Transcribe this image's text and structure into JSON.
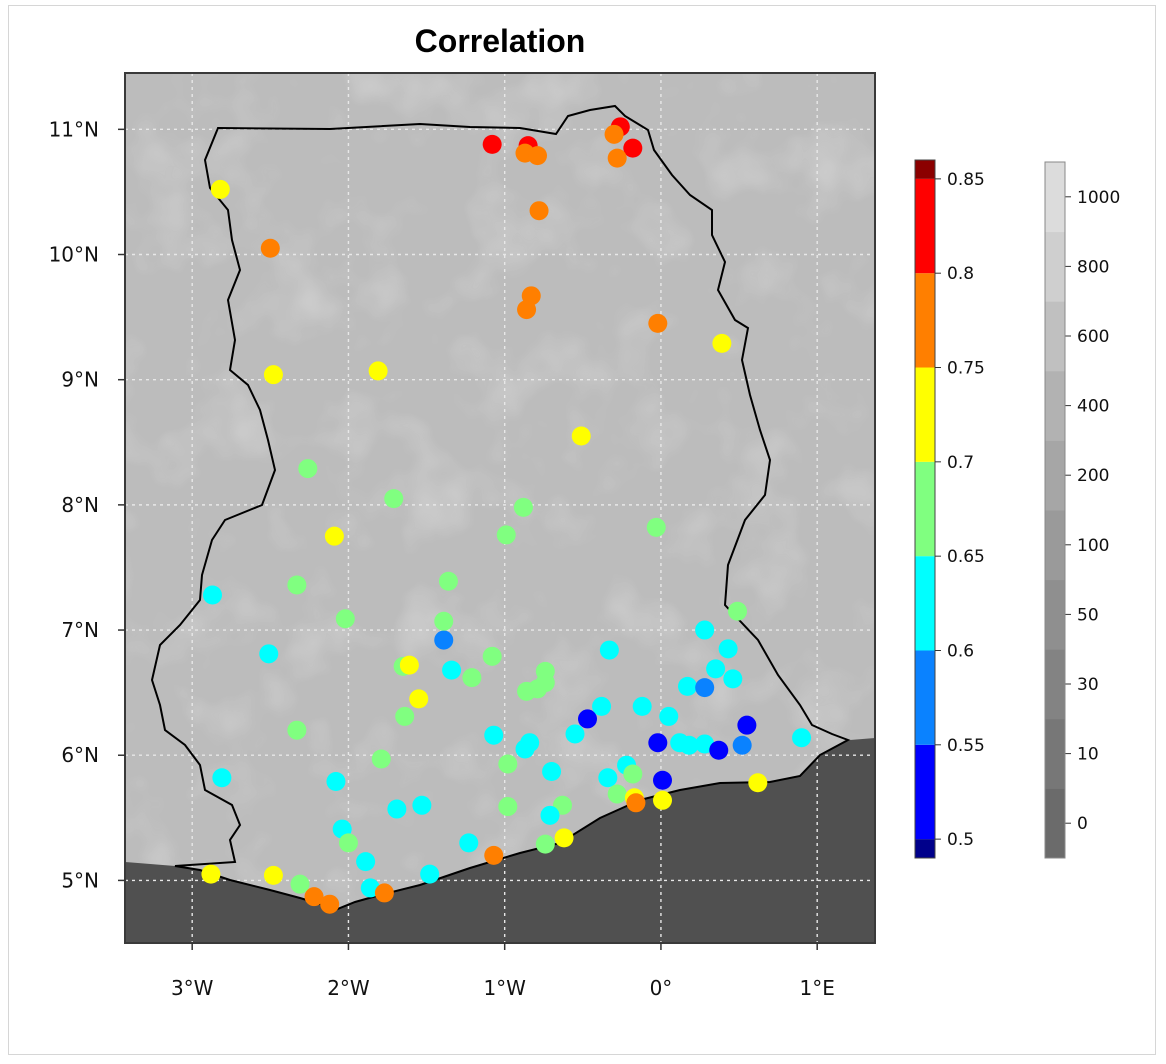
{
  "title": "Correlation",
  "x_ticks": [
    {
      "lon": -3,
      "label": "3°W"
    },
    {
      "lon": -2,
      "label": "2°W"
    },
    {
      "lon": -1,
      "label": "1°W"
    },
    {
      "lon": 0,
      "label": "0°"
    },
    {
      "lon": 1,
      "label": "1°E"
    }
  ],
  "y_ticks": [
    {
      "lat": 5,
      "label": "5°N"
    },
    {
      "lat": 6,
      "label": "6°N"
    },
    {
      "lat": 7,
      "label": "7°N"
    },
    {
      "lat": 8,
      "label": "8°N"
    },
    {
      "lat": 9,
      "label": "9°N"
    },
    {
      "lat": 10,
      "label": "10°N"
    },
    {
      "lat": 11,
      "label": "11°N"
    }
  ],
  "correlation_scale": {
    "levels": [
      {
        "from": 0.49,
        "to": 0.5,
        "color": "#00008B"
      },
      {
        "from": 0.5,
        "to": 0.55,
        "color": "#0000FF"
      },
      {
        "from": 0.55,
        "to": 0.6,
        "color": "#0A82FF"
      },
      {
        "from": 0.6,
        "to": 0.65,
        "color": "#00FFFF"
      },
      {
        "from": 0.65,
        "to": 0.7,
        "color": "#80FF80"
      },
      {
        "from": 0.7,
        "to": 0.75,
        "color": "#FFFF00"
      },
      {
        "from": 0.75,
        "to": 0.8,
        "color": "#FF7F00"
      },
      {
        "from": 0.8,
        "to": 0.85,
        "color": "#FF0000"
      },
      {
        "from": 0.85,
        "to": 0.86,
        "color": "#8B0000"
      }
    ],
    "tick_labels": [
      "0.5",
      "0.55",
      "0.6",
      "0.65",
      "0.7",
      "0.75",
      "0.8",
      "0.85"
    ]
  },
  "elevation_scale": {
    "levels": [
      {
        "label": "0",
        "color": "#6b6b6b"
      },
      {
        "label": "10",
        "color": "#777777"
      },
      {
        "label": "30",
        "color": "#838383"
      },
      {
        "label": "50",
        "color": "#8f8f8f"
      },
      {
        "label": "100",
        "color": "#9a9a9a"
      },
      {
        "label": "200",
        "color": "#a6a6a6"
      },
      {
        "label": "400",
        "color": "#b2b2b2"
      },
      {
        "label": "600",
        "color": "#c0c0c0"
      },
      {
        "label": "800",
        "color": "#cfcfcf"
      },
      {
        "label": "1000",
        "color": "#dcdcdc"
      }
    ]
  },
  "ocean_color": "#505050",
  "land_color": "#bcbcbc",
  "chart_data": {
    "type": "scatter",
    "title": "Correlation",
    "xlim": [
      -3.43,
      1.37
    ],
    "ylim": [
      4.5,
      11.45
    ],
    "x_ticks": [
      -3,
      -2,
      -1,
      0,
      1
    ],
    "y_ticks": [
      5,
      6,
      7,
      8,
      9,
      10,
      11
    ],
    "grid": true,
    "colorbar": "right",
    "stations": [
      {
        "lon": -1.08,
        "lat": 10.88,
        "r": 0.82
      },
      {
        "lon": -0.85,
        "lat": 10.87,
        "r": 0.82
      },
      {
        "lon": -0.26,
        "lat": 11.02,
        "r": 0.84
      },
      {
        "lon": -0.18,
        "lat": 10.85,
        "r": 0.82
      },
      {
        "lon": -0.87,
        "lat": 10.81,
        "r": 0.77
      },
      {
        "lon": -0.79,
        "lat": 10.79,
        "r": 0.77
      },
      {
        "lon": -0.3,
        "lat": 10.96,
        "r": 0.77
      },
      {
        "lon": -0.28,
        "lat": 10.77,
        "r": 0.77
      },
      {
        "lon": -0.78,
        "lat": 10.35,
        "r": 0.77
      },
      {
        "lon": -2.82,
        "lat": 10.52,
        "r": 0.72
      },
      {
        "lon": -2.5,
        "lat": 10.05,
        "r": 0.77
      },
      {
        "lon": -0.83,
        "lat": 9.67,
        "r": 0.77
      },
      {
        "lon": -0.86,
        "lat": 9.56,
        "r": 0.77
      },
      {
        "lon": -0.02,
        "lat": 9.45,
        "r": 0.77
      },
      {
        "lon": 0.39,
        "lat": 9.29,
        "r": 0.72
      },
      {
        "lon": -2.48,
        "lat": 9.04,
        "r": 0.72
      },
      {
        "lon": -1.81,
        "lat": 9.07,
        "r": 0.72
      },
      {
        "lon": -0.51,
        "lat": 8.55,
        "r": 0.72
      },
      {
        "lon": -2.26,
        "lat": 8.29,
        "r": 0.68
      },
      {
        "lon": -1.71,
        "lat": 8.05,
        "r": 0.68
      },
      {
        "lon": -0.88,
        "lat": 7.98,
        "r": 0.68
      },
      {
        "lon": -0.03,
        "lat": 7.82,
        "r": 0.68
      },
      {
        "lon": -2.09,
        "lat": 7.75,
        "r": 0.72
      },
      {
        "lon": -0.99,
        "lat": 7.76,
        "r": 0.68
      },
      {
        "lon": -2.33,
        "lat": 7.36,
        "r": 0.68
      },
      {
        "lon": -1.36,
        "lat": 7.39,
        "r": 0.68
      },
      {
        "lon": -2.87,
        "lat": 7.28,
        "r": 0.62
      },
      {
        "lon": 0.49,
        "lat": 7.15,
        "r": 0.68
      },
      {
        "lon": -2.02,
        "lat": 7.09,
        "r": 0.68
      },
      {
        "lon": -1.39,
        "lat": 7.07,
        "r": 0.68
      },
      {
        "lon": 0.28,
        "lat": 7.0,
        "r": 0.62
      },
      {
        "lon": -1.39,
        "lat": 6.92,
        "r": 0.57
      },
      {
        "lon": -0.33,
        "lat": 6.84,
        "r": 0.62
      },
      {
        "lon": 0.43,
        "lat": 6.85,
        "r": 0.62
      },
      {
        "lon": -2.51,
        "lat": 6.81,
        "r": 0.62
      },
      {
        "lon": -1.08,
        "lat": 6.79,
        "r": 0.68
      },
      {
        "lon": -1.65,
        "lat": 6.71,
        "r": 0.68
      },
      {
        "lon": -1.61,
        "lat": 6.72,
        "r": 0.72
      },
      {
        "lon": -1.34,
        "lat": 6.68,
        "r": 0.62
      },
      {
        "lon": -0.74,
        "lat": 6.67,
        "r": 0.68
      },
      {
        "lon": 0.35,
        "lat": 6.69,
        "r": 0.62
      },
      {
        "lon": -1.21,
        "lat": 6.62,
        "r": 0.68
      },
      {
        "lon": 0.46,
        "lat": 6.61,
        "r": 0.62
      },
      {
        "lon": -0.74,
        "lat": 6.58,
        "r": 0.68
      },
      {
        "lon": -0.79,
        "lat": 6.53,
        "r": 0.68
      },
      {
        "lon": 0.17,
        "lat": 6.55,
        "r": 0.62
      },
      {
        "lon": 0.28,
        "lat": 6.54,
        "r": 0.57
      },
      {
        "lon": -0.86,
        "lat": 6.51,
        "r": 0.68
      },
      {
        "lon": -1.55,
        "lat": 6.45,
        "r": 0.72
      },
      {
        "lon": -0.38,
        "lat": 6.39,
        "r": 0.62
      },
      {
        "lon": -0.12,
        "lat": 6.39,
        "r": 0.62
      },
      {
        "lon": -1.64,
        "lat": 6.31,
        "r": 0.68
      },
      {
        "lon": 0.05,
        "lat": 6.31,
        "r": 0.62
      },
      {
        "lon": -0.47,
        "lat": 6.29,
        "r": 0.52
      },
      {
        "lon": 0.55,
        "lat": 6.24,
        "r": 0.52
      },
      {
        "lon": -2.33,
        "lat": 6.2,
        "r": 0.68
      },
      {
        "lon": -0.55,
        "lat": 6.17,
        "r": 0.62
      },
      {
        "lon": -1.07,
        "lat": 6.16,
        "r": 0.62
      },
      {
        "lon": 0.9,
        "lat": 6.14,
        "r": 0.62
      },
      {
        "lon": -0.02,
        "lat": 6.1,
        "r": 0.52
      },
      {
        "lon": 0.12,
        "lat": 6.1,
        "r": 0.62
      },
      {
        "lon": 0.18,
        "lat": 6.08,
        "r": 0.62
      },
      {
        "lon": 0.28,
        "lat": 6.09,
        "r": 0.62
      },
      {
        "lon": -0.84,
        "lat": 6.1,
        "r": 0.62
      },
      {
        "lon": 0.52,
        "lat": 6.08,
        "r": 0.57
      },
      {
        "lon": -0.87,
        "lat": 6.05,
        "r": 0.62
      },
      {
        "lon": 0.37,
        "lat": 6.04,
        "r": 0.52
      },
      {
        "lon": -1.79,
        "lat": 5.97,
        "r": 0.68
      },
      {
        "lon": -0.98,
        "lat": 5.93,
        "r": 0.68
      },
      {
        "lon": -0.22,
        "lat": 5.92,
        "r": 0.62
      },
      {
        "lon": -0.7,
        "lat": 5.87,
        "r": 0.62
      },
      {
        "lon": -0.18,
        "lat": 5.85,
        "r": 0.68
      },
      {
        "lon": -2.81,
        "lat": 5.82,
        "r": 0.62
      },
      {
        "lon": -0.34,
        "lat": 5.82,
        "r": 0.62
      },
      {
        "lon": 0.01,
        "lat": 5.8,
        "r": 0.52
      },
      {
        "lon": -2.08,
        "lat": 5.79,
        "r": 0.62
      },
      {
        "lon": 0.62,
        "lat": 5.78,
        "r": 0.72
      },
      {
        "lon": -0.28,
        "lat": 5.69,
        "r": 0.68
      },
      {
        "lon": -0.17,
        "lat": 5.66,
        "r": 0.72
      },
      {
        "lon": -0.16,
        "lat": 5.62,
        "r": 0.77
      },
      {
        "lon": 0.01,
        "lat": 5.64,
        "r": 0.72
      },
      {
        "lon": -1.53,
        "lat": 5.6,
        "r": 0.62
      },
      {
        "lon": -0.63,
        "lat": 5.6,
        "r": 0.68
      },
      {
        "lon": -0.98,
        "lat": 5.59,
        "r": 0.68
      },
      {
        "lon": -1.69,
        "lat": 5.57,
        "r": 0.62
      },
      {
        "lon": -0.71,
        "lat": 5.52,
        "r": 0.62
      },
      {
        "lon": -2.04,
        "lat": 5.41,
        "r": 0.62
      },
      {
        "lon": -0.62,
        "lat": 5.34,
        "r": 0.72
      },
      {
        "lon": -2.0,
        "lat": 5.3,
        "r": 0.68
      },
      {
        "lon": -1.23,
        "lat": 5.3,
        "r": 0.62
      },
      {
        "lon": -0.74,
        "lat": 5.29,
        "r": 0.68
      },
      {
        "lon": -1.07,
        "lat": 5.2,
        "r": 0.77
      },
      {
        "lon": -1.89,
        "lat": 5.15,
        "r": 0.62
      },
      {
        "lon": -2.88,
        "lat": 5.05,
        "r": 0.72
      },
      {
        "lon": -2.48,
        "lat": 5.04,
        "r": 0.72
      },
      {
        "lon": -1.48,
        "lat": 5.05,
        "r": 0.62
      },
      {
        "lon": -2.31,
        "lat": 4.97,
        "r": 0.68
      },
      {
        "lon": -1.86,
        "lat": 4.94,
        "r": 0.62
      },
      {
        "lon": -2.22,
        "lat": 4.87,
        "r": 0.77
      },
      {
        "lon": -1.77,
        "lat": 4.9,
        "r": 0.77
      },
      {
        "lon": -2.12,
        "lat": 4.81,
        "r": 0.77
      }
    ]
  }
}
